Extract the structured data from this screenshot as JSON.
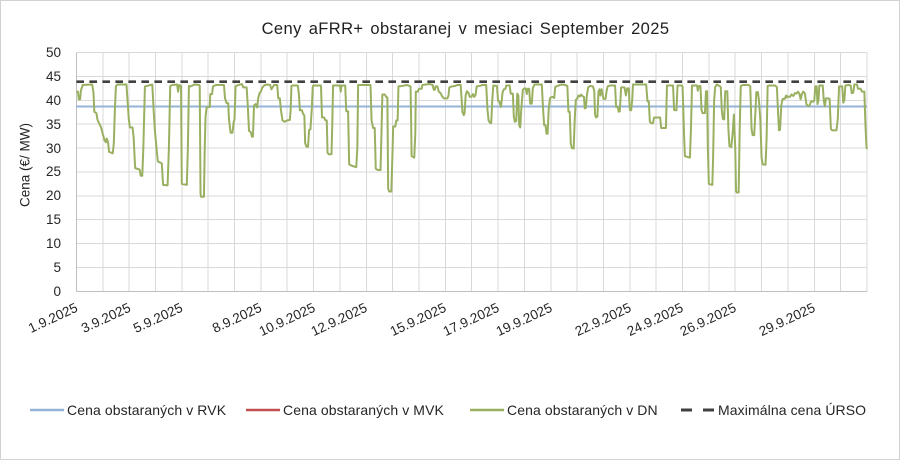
{
  "chart_data": {
    "type": "line",
    "title": "Ceny aFRR+ obstaranej v mesiaci September 2025",
    "ylabel": "Cena (€/ MW)",
    "xlabel": "",
    "ylim": [
      0,
      50
    ],
    "yticks": [
      0,
      5,
      10,
      15,
      20,
      25,
      30,
      35,
      40,
      45,
      50
    ],
    "x_axis_days": [
      0,
      30
    ],
    "grid": true,
    "legend_position": "bottom",
    "xticks": [
      {
        "day": 0,
        "label": "1.9.2025"
      },
      {
        "day": 2,
        "label": "3.9.2025"
      },
      {
        "day": 4,
        "label": "5.9.2025"
      },
      {
        "day": 7,
        "label": "8.9.2025"
      },
      {
        "day": 9,
        "label": "10.9.2025"
      },
      {
        "day": 11,
        "label": "12.9.2025"
      },
      {
        "day": 14,
        "label": "15.9.2025"
      },
      {
        "day": 16,
        "label": "17.9.2025"
      },
      {
        "day": 18,
        "label": "19.9.2025"
      },
      {
        "day": 21,
        "label": "22.9.2025"
      },
      {
        "day": 23,
        "label": "24.9.2025"
      },
      {
        "day": 25,
        "label": "26.9.2025"
      },
      {
        "day": 28,
        "label": "29.9.2025"
      }
    ],
    "series": [
      {
        "name": "Cena obstaraných v RVK",
        "color": "#95b3d7",
        "dash": "solid",
        "kind": "constant",
        "value": 38.7
      },
      {
        "name": "Cena obstaraných v MVK",
        "color": "#c0504d",
        "dash": "solid",
        "kind": "constant",
        "value": null
      },
      {
        "name": "Cena obstaraných v DN",
        "color": "#9ab061",
        "dash": "solid",
        "kind": "points",
        "x": [
          0.0,
          0.06,
          0.09,
          0.14,
          0.17,
          0.24,
          0.6,
          0.65,
          0.68,
          0.76,
          0.8,
          0.93,
          1.0,
          1.07,
          1.12,
          1.15,
          1.2,
          1.24,
          1.38,
          1.42,
          1.46,
          1.5,
          1.56,
          1.9,
          1.94,
          1.99,
          2.03,
          2.13,
          2.17,
          2.23,
          2.4,
          2.44,
          2.5,
          2.54,
          2.6,
          2.68,
          2.88,
          2.93,
          2.98,
          3.04,
          3.09,
          3.24,
          3.29,
          3.46,
          3.51,
          3.56,
          3.64,
          3.82,
          3.86,
          3.9,
          3.97,
          4.0,
          4.19,
          4.23,
          4.27,
          4.34,
          4.48,
          4.66,
          4.68,
          4.71,
          4.73,
          4.84,
          4.87,
          4.9,
          4.94,
          5.0,
          5.06,
          5.08,
          5.15,
          5.18,
          5.3,
          5.6,
          5.64,
          5.7,
          5.76,
          5.79,
          5.85,
          5.92,
          5.97,
          6.0,
          6.04,
          6.1,
          6.28,
          6.33,
          6.46,
          6.5,
          6.55,
          6.62,
          6.66,
          6.7,
          6.74,
          6.8,
          6.86,
          6.9,
          6.95,
          7.0,
          7.05,
          7.12,
          7.22,
          7.35,
          7.4,
          7.5,
          7.62,
          7.66,
          7.72,
          7.76,
          7.82,
          7.9,
          8.0,
          8.1,
          8.13,
          8.16,
          8.2,
          8.4,
          8.44,
          8.48,
          8.56,
          8.6,
          8.65,
          8.68,
          8.73,
          8.79,
          8.83,
          8.88,
          8.93,
          8.97,
          9.0,
          9.28,
          9.32,
          9.4,
          9.45,
          9.5,
          9.53,
          9.58,
          9.68,
          9.71,
          9.74,
          9.8,
          9.98,
          10.0,
          10.03,
          10.06,
          10.2,
          10.24,
          10.31,
          10.35,
          10.45,
          10.62,
          10.66,
          10.69,
          10.76,
          10.98,
          11.0,
          11.16,
          11.2,
          11.26,
          11.32,
          11.36,
          11.44,
          11.54,
          11.58,
          11.61,
          11.7,
          11.77,
          11.8,
          11.83,
          11.87,
          11.95,
          12.0,
          12.02,
          12.1,
          12.14,
          12.19,
          12.22,
          12.35,
          12.55,
          12.68,
          12.7,
          12.72,
          12.82,
          12.86,
          12.88,
          12.95,
          13.0,
          13.1,
          13.13,
          13.4,
          13.52,
          13.56,
          13.6,
          13.63,
          13.7,
          13.75,
          13.82,
          13.88,
          13.95,
          14.0,
          14.08,
          14.12,
          14.15,
          14.25,
          14.38,
          14.45,
          14.58,
          14.62,
          14.65,
          14.7,
          14.73,
          14.77,
          14.82,
          14.88,
          14.93,
          15.0,
          15.05,
          15.1,
          15.15,
          15.19,
          15.3,
          15.42,
          15.55,
          15.6,
          15.64,
          15.69,
          15.74,
          15.78,
          15.82,
          15.96,
          16.0,
          16.04,
          16.08,
          16.11,
          16.14,
          16.17,
          16.22,
          16.28,
          16.31,
          16.44,
          16.48,
          16.56,
          16.6,
          16.64,
          16.69,
          16.73,
          16.77,
          16.8,
          16.84,
          16.88,
          16.94,
          17.0,
          17.05,
          17.09,
          17.13,
          17.18,
          17.22,
          17.28,
          17.32,
          17.38,
          17.66,
          17.71,
          17.75,
          17.8,
          17.84,
          17.88,
          17.92,
          17.97,
          18.0,
          18.08,
          18.13,
          18.17,
          18.25,
          18.4,
          18.55,
          18.63,
          18.67,
          18.72,
          18.76,
          18.8,
          18.87,
          18.91,
          18.95,
          19.0,
          19.05,
          19.1,
          19.15,
          19.2,
          19.26,
          19.29,
          19.33,
          19.37,
          19.42,
          19.5,
          19.6,
          19.65,
          19.68,
          19.72,
          19.77,
          19.81,
          19.85,
          19.88,
          19.93,
          20.0,
          20.08,
          20.12,
          20.16,
          20.24,
          20.44,
          20.48,
          20.54,
          20.58,
          20.62,
          20.67,
          20.8,
          20.85,
          20.9,
          20.96,
          21.0,
          21.05,
          21.09,
          21.12,
          21.3,
          21.62,
          21.67,
          21.72,
          21.76,
          21.82,
          21.88,
          21.92,
          21.97,
          22.0,
          22.15,
          22.19,
          22.37,
          22.41,
          22.64,
          22.68,
          22.72,
          22.77,
          22.81,
          22.95,
          23.0,
          23.03,
          23.06,
          23.09,
          23.28,
          23.32,
          23.36,
          23.55,
          23.58,
          23.62,
          23.68,
          23.72,
          23.76,
          23.85,
          23.89,
          23.93,
          23.96,
          24.0,
          24.13,
          24.16,
          24.2,
          24.24,
          24.3,
          24.4,
          24.45,
          24.49,
          24.53,
          24.58,
          24.62,
          24.7,
          24.74,
          24.78,
          24.85,
          24.9,
          24.95,
          25.0,
          25.03,
          25.06,
          25.13,
          25.17,
          25.21,
          25.3,
          25.5,
          25.57,
          25.62,
          25.66,
          25.72,
          25.77,
          25.8,
          25.86,
          25.9,
          25.95,
          26.0,
          26.04,
          26.15,
          26.19,
          26.23,
          26.3,
          26.5,
          26.58,
          26.62,
          26.66,
          26.7,
          26.75,
          26.8,
          26.88,
          26.93,
          26.97,
          27.0,
          27.08,
          27.13,
          27.21,
          27.26,
          27.32,
          27.38,
          27.44,
          27.48,
          27.53,
          27.58,
          27.64,
          27.7,
          27.76,
          27.82,
          27.88,
          27.95,
          28.0,
          28.04,
          28.09,
          28.12,
          28.16,
          28.19,
          28.32,
          28.36,
          28.4,
          28.44,
          28.52,
          28.58,
          28.63,
          28.68,
          28.84,
          28.89,
          28.94,
          29.0,
          29.06,
          29.1,
          29.14,
          29.18,
          29.3,
          29.38,
          29.42,
          29.48,
          29.52,
          29.62,
          29.66,
          29.76,
          29.81,
          29.9,
          29.94,
          29.98,
          30.0
        ],
        "values": [
          41.8,
          41.8,
          40.2,
          40.2,
          42.0,
          43.2,
          43.3,
          41.5,
          37.6,
          37.3,
          35.9,
          34.4,
          33.0,
          31.6,
          31.2,
          32.0,
          31.3,
          29.2,
          28.9,
          31.0,
          38.0,
          43.0,
          43.3,
          43.3,
          40.0,
          36.0,
          34.3,
          34.3,
          32.3,
          25.8,
          25.5,
          24.2,
          24.2,
          30.0,
          42.9,
          43.0,
          43.3,
          38.0,
          33.6,
          30.0,
          27.2,
          26.8,
          22.3,
          22.2,
          30.0,
          43.0,
          43.2,
          43.3,
          41.8,
          43.2,
          43.0,
          22.5,
          22.3,
          30.0,
          43.0,
          42.9,
          43.3,
          43.2,
          43.0,
          20.5,
          19.8,
          19.8,
          30.0,
          36.5,
          38.5,
          38.6,
          38.6,
          41.3,
          41.3,
          42.9,
          43.2,
          43.2,
          40.4,
          39.4,
          39.4,
          36.0,
          33.2,
          33.2,
          35.5,
          36.0,
          42.9,
          43.1,
          43.4,
          42.7,
          42.7,
          39.2,
          33.6,
          33.3,
          32.4,
          32.4,
          38.9,
          39.2,
          38.5,
          40.5,
          41.5,
          41.8,
          42.6,
          43.1,
          43.3,
          43.2,
          42.3,
          43.2,
          43.2,
          40.4,
          40.4,
          38.0,
          35.8,
          35.5,
          35.8,
          35.9,
          38.0,
          43.0,
          43.1,
          43.1,
          41.5,
          37.9,
          37.9,
          37.2,
          36.8,
          31.0,
          30.3,
          30.3,
          33.8,
          33.9,
          38.0,
          43.0,
          43.1,
          43.1,
          36.4,
          36.4,
          35.8,
          35.8,
          29.0,
          28.7,
          28.7,
          35.0,
          43.1,
          43.1,
          43.1,
          43.1,
          41.8,
          43.1,
          43.1,
          37.7,
          37.7,
          26.6,
          26.3,
          26.0,
          30.0,
          43.2,
          43.2,
          43.2,
          43.2,
          43.2,
          35.8,
          34.2,
          34.2,
          25.7,
          25.4,
          25.4,
          34.0,
          41.2,
          41.2,
          40.6,
          40.6,
          21.5,
          20.9,
          20.9,
          30.0,
          34.5,
          34.5,
          35.8,
          35.8,
          42.9,
          43.0,
          43.2,
          42.9,
          36.0,
          28.3,
          28.0,
          33.0,
          41.8,
          41.8,
          42.4,
          42.4,
          43.2,
          43.4,
          43.2,
          42.2,
          42.2,
          42.9,
          42.9,
          41.8,
          41.5,
          40.8,
          40.4,
          40.4,
          40.4,
          41.0,
          42.7,
          42.9,
          43.0,
          43.2,
          43.2,
          40.0,
          37.5,
          36.9,
          37.3,
          41.0,
          41.9,
          41.5,
          40.7,
          40.8,
          41.3,
          40.7,
          41.2,
          42.9,
          43.0,
          43.2,
          43.2,
          38.0,
          35.8,
          35.3,
          35.2,
          40.0,
          43.1,
          43.0,
          39.9,
          39.8,
          39.2,
          38.6,
          40.0,
          41.6,
          42.3,
          42.4,
          43.1,
          43.1,
          41.4,
          41.4,
          36.5,
          35.5,
          35.7,
          41.4,
          41.0,
          34.8,
          34.3,
          38.0,
          42.2,
          42.5,
          42.5,
          41.3,
          42.4,
          42.4,
          39.3,
          39.3,
          42.5,
          43.3,
          43.3,
          38.0,
          34.8,
          34.8,
          33.0,
          33.0,
          38.0,
          40.4,
          40.6,
          40.7,
          40.5,
          42.8,
          43.0,
          43.3,
          43.2,
          43.0,
          37.6,
          37.6,
          31.0,
          30.0,
          29.9,
          36.0,
          40.1,
          40.3,
          41.0,
          40.8,
          41.2,
          40.9,
          40.7,
          38.3,
          38.4,
          41.0,
          42.7,
          43.0,
          42.9,
          42.0,
          37.0,
          36.4,
          36.6,
          41.8,
          42.3,
          41.0,
          42.3,
          40.3,
          40.3,
          42.0,
          42.9,
          43.1,
          43.1,
          38.6,
          38.6,
          37.6,
          37.7,
          42.7,
          42.7,
          41.0,
          42.5,
          42.5,
          38.0,
          37.9,
          40.0,
          43.3,
          43.3,
          43.3,
          39.8,
          39.8,
          35.5,
          35.2,
          35.2,
          36.4,
          36.4,
          36.4,
          36.4,
          34.2,
          34.2,
          43.1,
          43.1,
          38.0,
          37.9,
          37.9,
          43.1,
          43.1,
          42.9,
          38.0,
          32.4,
          28.3,
          28.0,
          34.0,
          43.1,
          43.1,
          42.0,
          43.0,
          43.0,
          38.0,
          37.3,
          37.3,
          41.9,
          41.9,
          30.0,
          22.5,
          22.3,
          28.0,
          40.0,
          42.8,
          43.3,
          43.0,
          42.8,
          38.0,
          36.1,
          36.0,
          41.9,
          41.9,
          34.0,
          30.4,
          30.2,
          33.0,
          37.0,
          30.0,
          21.0,
          20.7,
          20.7,
          34.0,
          43.0,
          43.2,
          43.2,
          43.0,
          34.0,
          32.7,
          32.7,
          38.0,
          41.7,
          41.7,
          40.0,
          36.0,
          28.0,
          26.6,
          26.5,
          32.0,
          43.0,
          43.1,
          43.1,
          42.8,
          38.0,
          33.7,
          33.8,
          39.0,
          40.3,
          40.3,
          41.0,
          40.6,
          40.8,
          40.7,
          41.2,
          40.9,
          41.5,
          41.4,
          41.8,
          41.3,
          40.2,
          41.3,
          41.8,
          41.5,
          39.2,
          38.8,
          38.9,
          39.8,
          39.7,
          40.0,
          42.9,
          42.9,
          39.2,
          40.0,
          43.1,
          43.1,
          40.0,
          38.7,
          40.4,
          40.4,
          40.3,
          34.0,
          33.7,
          33.7,
          36.0,
          42.9,
          42.9,
          42.9,
          39.5,
          40.0,
          43.1,
          43.2,
          43.1,
          41.5,
          41.6,
          43.3,
          43.3,
          42.4,
          42.4,
          41.8,
          41.8,
          35.0,
          30.3,
          29.8
        ]
      },
      {
        "name": "Maximálna cena ÚRSO",
        "color": "#404040",
        "dash": "dashed",
        "kind": "constant",
        "value": 43.9
      }
    ],
    "colors": {
      "gridline": "#d9d9d9",
      "axis_line": "#bfbfbf",
      "text": "#262626",
      "background": "#ffffff"
    }
  }
}
